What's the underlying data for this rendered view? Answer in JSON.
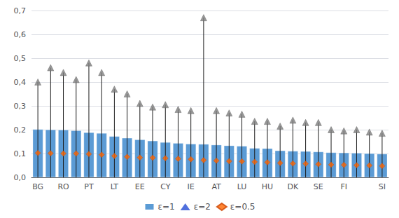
{
  "chart_data": {
    "type": "bar",
    "categories": [
      "BG",
      null,
      "RO",
      null,
      "PT",
      null,
      "LT",
      null,
      "EE",
      null,
      "CY",
      null,
      "IE",
      null,
      "AT",
      null,
      "LU",
      null,
      "HU",
      null,
      "DK",
      null,
      "SE",
      null,
      "FI",
      null,
      null,
      "SI"
    ],
    "series": [
      {
        "name": "ε=1",
        "type": "bar",
        "color": "#5B9BD5",
        "values": [
          0.201,
          0.2,
          0.199,
          0.196,
          0.188,
          0.185,
          0.172,
          0.165,
          0.158,
          0.153,
          0.147,
          0.143,
          0.14,
          0.139,
          0.136,
          0.133,
          0.131,
          0.122,
          0.121,
          0.112,
          0.11,
          0.109,
          0.107,
          0.104,
          0.103,
          0.102,
          0.1,
          0.098
        ]
      },
      {
        "name": "ε=2",
        "type": "lollipop",
        "marker": "triangle",
        "color": "#808080",
        "values": [
          0.4,
          0.46,
          0.44,
          0.41,
          0.48,
          0.44,
          0.37,
          0.35,
          0.31,
          0.295,
          0.305,
          0.285,
          0.28,
          0.67,
          0.28,
          0.27,
          0.265,
          0.235,
          0.235,
          0.215,
          0.24,
          0.23,
          0.23,
          0.2,
          0.195,
          0.2,
          0.19,
          0.185
        ]
      },
      {
        "name": "ε=0.5",
        "type": "scatter",
        "marker": "diamond",
        "color": "#FF6600",
        "values": [
          0.102,
          0.101,
          0.1,
          0.1,
          0.098,
          0.095,
          0.09,
          0.086,
          0.083,
          0.082,
          0.08,
          0.078,
          0.076,
          0.072,
          0.07,
          0.068,
          0.067,
          0.065,
          0.063,
          0.06,
          0.058,
          0.057,
          0.055,
          0.053,
          0.052,
          0.051,
          0.05,
          0.048
        ]
      }
    ],
    "ylim": [
      0.0,
      0.7
    ],
    "yticks": [
      {
        "value": 0.0,
        "label": "0,0"
      },
      {
        "value": 0.1,
        "label": "0,1"
      },
      {
        "value": 0.2,
        "label": "0,2"
      },
      {
        "value": 0.3,
        "label": "0,3"
      },
      {
        "value": 0.4,
        "label": "0,4"
      },
      {
        "value": 0.5,
        "label": "0,5"
      },
      {
        "value": 0.6,
        "label": "0,6"
      },
      {
        "value": 0.7,
        "label": "0,7"
      }
    ],
    "grid": true,
    "legend": "bottom"
  }
}
